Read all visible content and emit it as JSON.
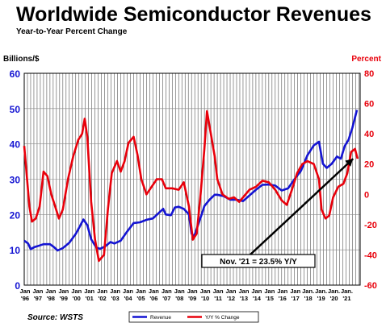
{
  "title": "Worldwide Semiconductor Revenues",
  "subtitle": "Year-to-Year Percent Change",
  "left_axis_title": "Billions/$",
  "right_axis_title": "Percent",
  "source": "Source: WSTS",
  "colors": {
    "revenue": "#1414d2",
    "yoy": "#e8000b",
    "grid": "#555555",
    "annotation": "#000000"
  },
  "chart_data": {
    "type": "line",
    "title": "Worldwide Semiconductor Revenues",
    "subtitle": "Year-to-Year Percent Change",
    "ylabel": "Billions/$",
    "y2label": "Percent",
    "ylim": [
      0,
      60
    ],
    "y2lim": [
      -60,
      80
    ],
    "yticks": [
      0,
      10,
      20,
      30,
      40,
      50,
      60
    ],
    "y2ticks": [
      -60,
      -40,
      -20,
      0,
      20,
      40,
      60,
      80
    ],
    "xlim": [
      1996.0,
      2022.1
    ],
    "grid": true,
    "legend_position": "bottom-center",
    "x_tick_labels": [
      {
        "year": 1996,
        "top": "Jan",
        "bottom": "'96"
      },
      {
        "year": 1997,
        "top": "Jan",
        "bottom": "'97"
      },
      {
        "year": 1998,
        "top": "Jan",
        "bottom": "'98"
      },
      {
        "year": 1999,
        "top": "Jan",
        "bottom": "'99"
      },
      {
        "year": 2000,
        "top": "Jan",
        "bottom": "'00"
      },
      {
        "year": 2001,
        "top": "Jan",
        "bottom": "'01"
      },
      {
        "year": 2002,
        "top": "Jan",
        "bottom": "'02"
      },
      {
        "year": 2003,
        "top": "Jan",
        "bottom": "'03"
      },
      {
        "year": 2004,
        "top": "Jan",
        "bottom": "'04"
      },
      {
        "year": 2005,
        "top": "Jan",
        "bottom": "'05"
      },
      {
        "year": 2006,
        "top": "Jan",
        "bottom": "'06"
      },
      {
        "year": 2007,
        "top": "Jan",
        "bottom": "'07"
      },
      {
        "year": 2008,
        "top": "Jan",
        "bottom": "'08"
      },
      {
        "year": 2009,
        "top": "Jan",
        "bottom": "'09"
      },
      {
        "year": 2010,
        "top": "Jan",
        "bottom": "'10"
      },
      {
        "year": 2011,
        "top": "Jan",
        "bottom": "'11"
      },
      {
        "year": 2012,
        "top": "Jan",
        "bottom": "'12"
      },
      {
        "year": 2013,
        "top": "Jan",
        "bottom": "'13"
      },
      {
        "year": 2014,
        "top": "Jan",
        "bottom": "'14"
      },
      {
        "year": 2015,
        "top": "Jan",
        "bottom": "'15"
      },
      {
        "year": 2016,
        "top": "Jan",
        "bottom": "'16"
      },
      {
        "year": 2017,
        "top": "Jan",
        "bottom": "'17"
      },
      {
        "year": 2018,
        "top": "Jan.",
        "bottom": "'18"
      },
      {
        "year": 2019,
        "top": "Jan.",
        "bottom": "'19"
      },
      {
        "year": 2020,
        "top": "Jan.",
        "bottom": "'20"
      },
      {
        "year": 2021,
        "top": "Jan.",
        "bottom": "'21"
      }
    ],
    "series": [
      {
        "name": "Revenue",
        "axis": "left",
        "color": "#1414d2",
        "points": [
          [
            1996.0,
            12.6
          ],
          [
            1996.3,
            11.8
          ],
          [
            1996.5,
            10.2
          ],
          [
            1996.8,
            10.8
          ],
          [
            1997.0,
            11.0
          ],
          [
            1997.5,
            11.6
          ],
          [
            1998.0,
            11.6
          ],
          [
            1998.3,
            10.8
          ],
          [
            1998.6,
            9.8
          ],
          [
            1999.0,
            10.5
          ],
          [
            1999.5,
            12.0
          ],
          [
            2000.0,
            14.5
          ],
          [
            2000.3,
            16.5
          ],
          [
            2000.6,
            18.6
          ],
          [
            2000.9,
            17.0
          ],
          [
            2001.2,
            13.0
          ],
          [
            2001.6,
            10.6
          ],
          [
            2001.9,
            10.3
          ],
          [
            2002.3,
            11.0
          ],
          [
            2002.7,
            12.2
          ],
          [
            2003.0,
            11.8
          ],
          [
            2003.5,
            12.6
          ],
          [
            2004.0,
            15.2
          ],
          [
            2004.5,
            17.6
          ],
          [
            2005.0,
            17.8
          ],
          [
            2005.5,
            18.5
          ],
          [
            2006.0,
            18.9
          ],
          [
            2006.5,
            20.6
          ],
          [
            2006.8,
            21.6
          ],
          [
            2007.0,
            20.0
          ],
          [
            2007.4,
            19.8
          ],
          [
            2007.7,
            22.0
          ],
          [
            2008.0,
            22.2
          ],
          [
            2008.4,
            21.6
          ],
          [
            2008.8,
            20.0
          ],
          [
            2009.0,
            14.6
          ],
          [
            2009.2,
            13.8
          ],
          [
            2009.5,
            17.0
          ],
          [
            2009.8,
            20.2
          ],
          [
            2010.0,
            22.4
          ],
          [
            2010.4,
            24.2
          ],
          [
            2010.8,
            25.6
          ],
          [
            2011.0,
            25.6
          ],
          [
            2011.5,
            25.2
          ],
          [
            2012.0,
            24.2
          ],
          [
            2012.5,
            24.2
          ],
          [
            2013.0,
            23.8
          ],
          [
            2013.5,
            25.4
          ],
          [
            2014.0,
            27.0
          ],
          [
            2014.5,
            28.4
          ],
          [
            2015.0,
            28.5
          ],
          [
            2015.5,
            28.2
          ],
          [
            2016.0,
            26.8
          ],
          [
            2016.5,
            27.4
          ],
          [
            2017.0,
            30.0
          ],
          [
            2017.5,
            32.4
          ],
          [
            2018.0,
            36.8
          ],
          [
            2018.5,
            39.6
          ],
          [
            2018.9,
            40.6
          ],
          [
            2019.2,
            34.4
          ],
          [
            2019.5,
            33.2
          ],
          [
            2019.9,
            34.4
          ],
          [
            2020.3,
            36.4
          ],
          [
            2020.6,
            35.8
          ],
          [
            2020.9,
            39.4
          ],
          [
            2021.2,
            41.2
          ],
          [
            2021.5,
            44.6
          ],
          [
            2021.85,
            49.6
          ]
        ]
      },
      {
        "name": "Y/Y % Change",
        "axis": "right",
        "color": "#e8000b",
        "points": [
          [
            1996.0,
            32
          ],
          [
            1996.2,
            12
          ],
          [
            1996.4,
            -8
          ],
          [
            1996.6,
            -18
          ],
          [
            1996.9,
            -16
          ],
          [
            1997.2,
            -8
          ],
          [
            1997.5,
            15
          ],
          [
            1997.8,
            12
          ],
          [
            1998.1,
            0
          ],
          [
            1998.4,
            -8
          ],
          [
            1998.7,
            -16
          ],
          [
            1999.0,
            -10
          ],
          [
            1999.4,
            10
          ],
          [
            1999.8,
            25
          ],
          [
            2000.2,
            36
          ],
          [
            2000.5,
            40
          ],
          [
            2000.7,
            50
          ],
          [
            2000.9,
            38
          ],
          [
            2001.2,
            -5
          ],
          [
            2001.5,
            -30
          ],
          [
            2001.8,
            -44
          ],
          [
            2002.2,
            -40
          ],
          [
            2002.5,
            -10
          ],
          [
            2002.8,
            14
          ],
          [
            2003.2,
            22
          ],
          [
            2003.5,
            15
          ],
          [
            2003.8,
            22
          ],
          [
            2004.1,
            34
          ],
          [
            2004.5,
            38
          ],
          [
            2004.8,
            26
          ],
          [
            2005.1,
            10
          ],
          [
            2005.5,
            0
          ],
          [
            2005.9,
            5
          ],
          [
            2006.3,
            10
          ],
          [
            2006.7,
            10
          ],
          [
            2007.0,
            4
          ],
          [
            2007.5,
            4
          ],
          [
            2008.0,
            3
          ],
          [
            2008.4,
            8
          ],
          [
            2008.8,
            -8
          ],
          [
            2009.1,
            -30
          ],
          [
            2009.4,
            -26
          ],
          [
            2009.7,
            0
          ],
          [
            2010.0,
            30
          ],
          [
            2010.2,
            55
          ],
          [
            2010.5,
            40
          ],
          [
            2010.8,
            25
          ],
          [
            2011.0,
            10
          ],
          [
            2011.4,
            0
          ],
          [
            2011.9,
            -3
          ],
          [
            2012.3,
            -2
          ],
          [
            2012.7,
            -5
          ],
          [
            2013.0,
            -2
          ],
          [
            2013.5,
            3
          ],
          [
            2014.0,
            5
          ],
          [
            2014.5,
            9
          ],
          [
            2015.0,
            8
          ],
          [
            2015.5,
            3
          ],
          [
            2016.0,
            -4
          ],
          [
            2016.4,
            -7
          ],
          [
            2016.8,
            3
          ],
          [
            2017.2,
            14
          ],
          [
            2017.6,
            20
          ],
          [
            2018.0,
            22
          ],
          [
            2018.5,
            20
          ],
          [
            2018.9,
            10
          ],
          [
            2019.1,
            -10
          ],
          [
            2019.4,
            -16
          ],
          [
            2019.7,
            -14
          ],
          [
            2020.0,
            -2
          ],
          [
            2020.4,
            5
          ],
          [
            2020.8,
            7
          ],
          [
            2021.1,
            14
          ],
          [
            2021.4,
            28
          ],
          [
            2021.7,
            30
          ],
          [
            2021.9,
            23.5
          ]
        ]
      }
    ],
    "annotation": {
      "text": "Nov. '21 = 23.5% Y/Y",
      "x": 2021.8,
      "y2": 23.5
    }
  }
}
